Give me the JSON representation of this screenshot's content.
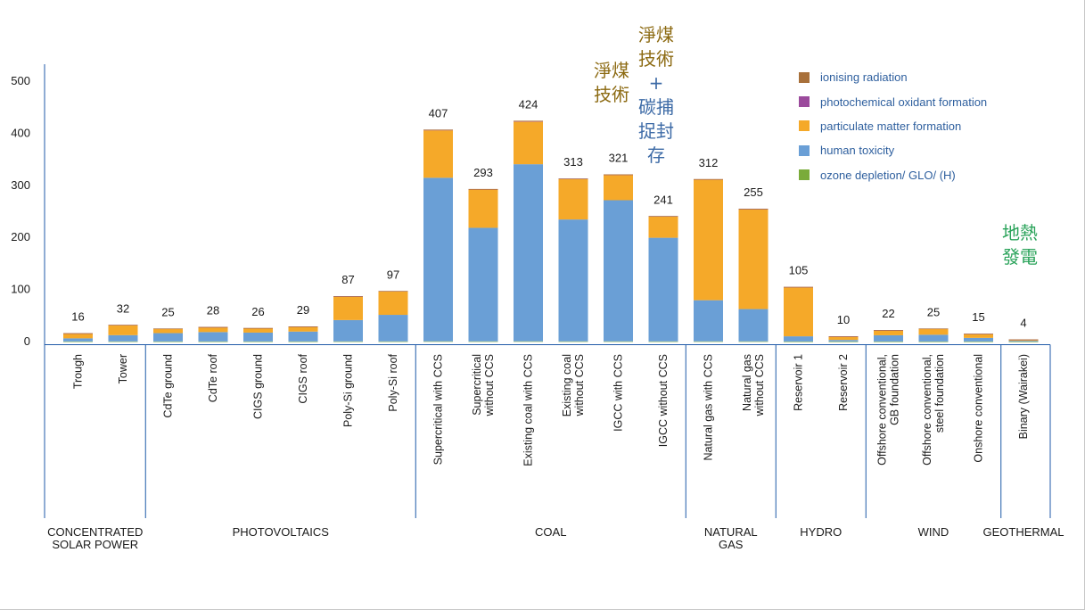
{
  "chart_data": {
    "type": "bar",
    "stacked": true,
    "ylim": [
      0,
      500
    ],
    "yticks": [
      0,
      100,
      200,
      300,
      400,
      500
    ],
    "grid": false,
    "legend_position": "top-right",
    "categories": [
      "Trough",
      "Tower",
      "CdTe ground",
      "CdTe roof",
      "CIGS ground",
      "CIGS roof",
      "Poly-Si ground",
      "Poly-Si roof",
      "Supercritical with CCS",
      "Supercritical without CCS",
      "Existing coal with CCS",
      "Existing coal without CCS",
      "IGCC with CCS",
      "IGCC without CCS",
      "Natural gas with CCS",
      "Natural gas without CCS",
      "Reservoir 1",
      "Reservoir 2",
      "Offshore conventional, GB foundation",
      "Offshore conventional, steel foundation",
      "Onshore conventional",
      "Binary (Wairakei)"
    ],
    "totals": [
      16,
      32,
      25,
      28,
      26,
      29,
      87,
      97,
      407,
      293,
      424,
      313,
      321,
      241,
      312,
      255,
      105,
      10,
      22,
      25,
      15,
      4
    ],
    "series": [
      {
        "name": "ozone depletion/ GLO/ (H)",
        "color": "#7aab3a",
        "values": [
          0.2,
          0.3,
          0.2,
          0.2,
          0.2,
          0.2,
          0.3,
          0.3,
          0.5,
          0.4,
          0.5,
          0.4,
          0.4,
          0.3,
          0.4,
          0.4,
          0.1,
          0.1,
          0.1,
          0.1,
          0.1,
          0.05
        ]
      },
      {
        "name": "human toxicity",
        "color": "#6a9fd6",
        "values": [
          6,
          12,
          16,
          18,
          17,
          19,
          41,
          51,
          314,
          218,
          340,
          234,
          271,
          199,
          79,
          62,
          10,
          3,
          12,
          13,
          7,
          1.5
        ]
      },
      {
        "name": "particulate matter formation",
        "color": "#f5a929",
        "values": [
          9.6,
          19.5,
          8.6,
          9.6,
          8.6,
          9.6,
          45.5,
          45.5,
          91.2,
          73.8,
          81.8,
          77.8,
          48.8,
          40.9,
          231.7,
          191.8,
          94.4,
          6.6,
          9.7,
          11.7,
          7.7,
          2.3
        ]
      },
      {
        "name": "photochemical oxidant formation",
        "color": "#9b4a9c",
        "values": [
          0.1,
          0.1,
          0.1,
          0.1,
          0.1,
          0.1,
          0.1,
          0.1,
          0.8,
          0.5,
          1.2,
          0.5,
          0.5,
          0.5,
          0.6,
          0.5,
          0.3,
          0.2,
          0.1,
          0.1,
          0.1,
          0.1
        ]
      },
      {
        "name": "ionising radiation",
        "color": "#a8703a",
        "values": [
          0.1,
          0.1,
          0.1,
          0.1,
          0.1,
          0.1,
          0.1,
          0.1,
          0.5,
          0.3,
          0.5,
          0.3,
          0.3,
          0.3,
          0.3,
          0.3,
          0.2,
          0.1,
          0.1,
          0.1,
          0.1,
          0.05
        ]
      }
    ],
    "groups": [
      {
        "name": "CONCENTRATED\nSOLAR POWER",
        "start": 0,
        "count": 2
      },
      {
        "name": "PHOTOVOLTAICS",
        "start": 2,
        "count": 6
      },
      {
        "name": "COAL",
        "start": 8,
        "count": 6
      },
      {
        "name": "NATURAL\nGAS",
        "start": 14,
        "count": 2
      },
      {
        "name": "HYDRO",
        "start": 16,
        "count": 2
      },
      {
        "name": "WIND",
        "start": 18,
        "count": 3
      },
      {
        "name": "GEOTHERMAL",
        "start": 21,
        "count": 1
      }
    ]
  },
  "annotations": {
    "clean_coal": "淨煤\n技術",
    "clean_coal_ccs": "淨煤\n技術\n+\n碳捕\n捉封\n存",
    "geothermal": "地熱\n發電"
  },
  "colors": {
    "axis": "#1f5aa8",
    "text": "#1a1a1a",
    "annotation_gold": "#8c6a12",
    "annotation_blue": "#3c6aa6",
    "annotation_green": "#2aa35a"
  }
}
